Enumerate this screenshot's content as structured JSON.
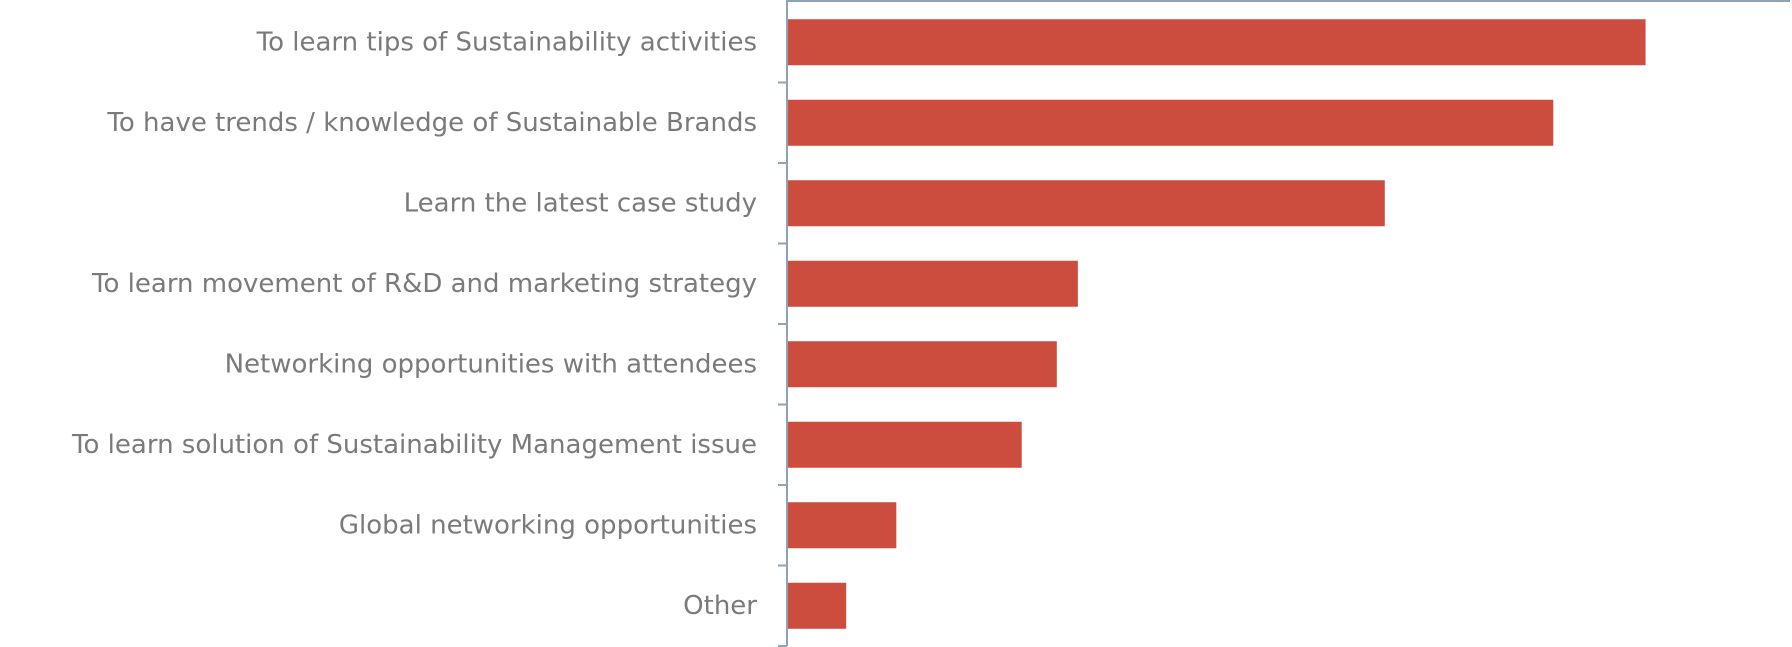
{
  "chart_data": {
    "type": "bar",
    "orientation": "horizontal",
    "categories": [
      "To learn tips of Sustainability activities",
      "To have trends / knowledge of Sustainable Brands",
      "Learn the latest case study",
      "To learn movement of R&D and marketing strategy",
      "Networking opportunities with attendees",
      "To learn solution of Sustainability Management issue",
      "Global networking opportunities",
      "Other"
    ],
    "values": [
      85.5,
      76.3,
      59.5,
      28.9,
      26.8,
      23.3,
      10.8,
      5.8
    ],
    "xlim": [
      0,
      100
    ],
    "title": "",
    "xlabel": "",
    "ylabel": "",
    "grid": false,
    "legend": "none",
    "colors": {
      "bar": "#cc4c3d",
      "axis": "#8ea3b8",
      "label": "#7a7a7a"
    }
  }
}
